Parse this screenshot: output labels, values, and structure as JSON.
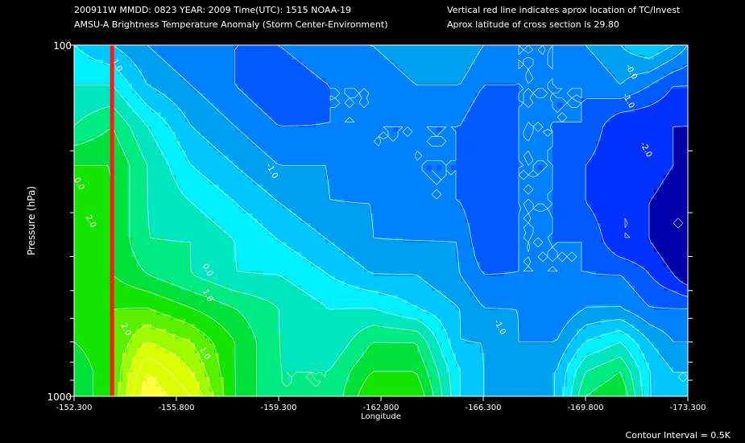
{
  "header": {
    "line1_left": "200911W  MMDD: 0823 YEAR: 2009 Time(UTC): 1515 NOAA-19",
    "line2_left": "AMSU-A Brightness Temperature Anomaly (Storm Center-Environment)",
    "line1_right": "Vertical red line indicates aprox location of TC/Invest",
    "line2_right": "Aprox latitude of cross section is 29.80"
  },
  "footer": {
    "contour_interval": "Contour Interval = 0.5K"
  },
  "colors": {
    "background": "#000000",
    "storm_line": "#ff1a1a",
    "contour_line": "#ffffff"
  },
  "chart_data": {
    "type": "heatmap",
    "xlabel": "Longitude",
    "ylabel": "Pressure (hPa)",
    "xlim": [
      -152.3,
      -173.3
    ],
    "ylim": [
      1000,
      100
    ],
    "y_scale": "log",
    "x_ticks": [
      -152.3,
      -155.8,
      -159.3,
      -162.8,
      -166.3,
      -169.8,
      -173.3
    ],
    "x_tick_labels": [
      "-152.300",
      "-155.800",
      "-159.300",
      "-162.800",
      "-166.300",
      "-169.800",
      "-173.300"
    ],
    "y_tick_labels": [
      {
        "value": 1000,
        "label": "1000"
      },
      {
        "value": 100,
        "label": "100"
      }
    ],
    "storm_center_longitude": -153.6,
    "contour_interval": 0.5,
    "contour_labels": [
      {
        "text": "1.0",
        "lon": -153.7,
        "p": 115
      },
      {
        "text": "0.0",
        "lon": -152.4,
        "p": 250
      },
      {
        "text": "2.0",
        "lon": -152.8,
        "p": 320
      },
      {
        "text": "-1.0",
        "lon": -159.0,
        "p": 230
      },
      {
        "text": "0.0",
        "lon": -156.8,
        "p": 440
      },
      {
        "text": "1.0",
        "lon": -156.8,
        "p": 520
      },
      {
        "text": "2.0",
        "lon": -154.0,
        "p": 650
      },
      {
        "text": "1.0",
        "lon": -156.7,
        "p": 760
      },
      {
        "text": "-1.0",
        "lon": -166.8,
        "p": 640
      },
      {
        "text": "-0.0",
        "lon": -171.3,
        "p": 120
      },
      {
        "text": "-1.0",
        "lon": -171.2,
        "p": 145
      },
      {
        "text": "-2.0",
        "lon": -171.8,
        "p": 200
      }
    ],
    "x": [
      -152.3,
      -153.6,
      -154.8,
      -156.3,
      -157.8,
      -159.3,
      -161.0,
      -162.5,
      -164.0,
      -165.5,
      -166.3,
      -167.5,
      -168.8,
      -169.8,
      -171.0,
      -172.0,
      -172.8,
      -173.3
    ],
    "p": [
      100,
      130,
      170,
      220,
      280,
      360,
      450,
      560,
      700,
      850,
      1000
    ],
    "values": [
      [
        0.0,
        -0.5,
        -1.0,
        -1.5,
        -1.5,
        -1.5,
        -1.0,
        -1.0,
        -0.5,
        -0.5,
        -1.0,
        -1.5,
        -1.5,
        -1.0,
        -0.5,
        0.0,
        -0.5,
        -1.0
      ],
      [
        0.5,
        0.5,
        -0.5,
        -1.0,
        -1.5,
        -2.0,
        -1.5,
        -1.5,
        -1.0,
        -1.0,
        -1.5,
        -1.5,
        -1.5,
        -1.5,
        -1.0,
        -1.5,
        -2.0,
        -2.0
      ],
      [
        1.0,
        1.5,
        0.5,
        -0.5,
        -1.0,
        -1.5,
        -1.5,
        -1.5,
        -1.5,
        -1.5,
        -2.0,
        -1.5,
        -1.5,
        -1.5,
        -2.5,
        -2.5,
        -2.5,
        -2.5
      ],
      [
        2.0,
        2.0,
        1.0,
        0.0,
        -0.5,
        -1.0,
        -1.0,
        -1.5,
        -1.5,
        -1.5,
        -2.0,
        -1.5,
        -1.5,
        -2.0,
        -2.5,
        -2.0,
        -2.5,
        -3.0
      ],
      [
        2.5,
        2.0,
        1.0,
        0.5,
        0.0,
        -0.5,
        -1.0,
        -1.0,
        -1.5,
        -1.5,
        -2.0,
        -1.5,
        -1.5,
        -2.0,
        -2.5,
        -2.5,
        -3.0,
        -3.0
      ],
      [
        2.5,
        2.0,
        1.0,
        1.0,
        0.5,
        0.0,
        -0.5,
        -1.0,
        -1.0,
        -1.0,
        -2.0,
        -1.5,
        -1.5,
        -1.5,
        -2.5,
        -2.5,
        -3.0,
        -3.0
      ],
      [
        2.5,
        2.0,
        1.5,
        1.0,
        0.5,
        0.5,
        0.0,
        -0.5,
        -0.5,
        -1.0,
        -1.5,
        -1.5,
        -1.5,
        -1.5,
        -1.5,
        -2.0,
        -2.5,
        -3.0
      ],
      [
        2.5,
        2.5,
        2.5,
        2.0,
        1.5,
        1.0,
        0.5,
        0.5,
        0.0,
        -0.5,
        -1.0,
        -1.0,
        -1.5,
        -1.0,
        -1.0,
        -1.5,
        -1.5,
        -1.5
      ],
      [
        2.0,
        2.5,
        3.5,
        3.0,
        2.0,
        1.0,
        0.5,
        1.5,
        1.5,
        -0.5,
        -0.5,
        -1.0,
        -1.0,
        0.0,
        0.5,
        -0.5,
        -1.0,
        -1.0
      ],
      [
        1.5,
        2.5,
        4.5,
        3.5,
        2.0,
        1.0,
        1.0,
        2.0,
        2.0,
        0.0,
        -0.5,
        -1.0,
        -0.5,
        1.0,
        1.5,
        0.0,
        -0.5,
        -0.5
      ],
      [
        1.5,
        2.5,
        5.0,
        4.0,
        2.0,
        1.0,
        1.0,
        2.5,
        2.5,
        0.0,
        -0.5,
        -1.0,
        -0.5,
        1.5,
        2.0,
        0.0,
        -0.5,
        -0.5
      ]
    ]
  }
}
